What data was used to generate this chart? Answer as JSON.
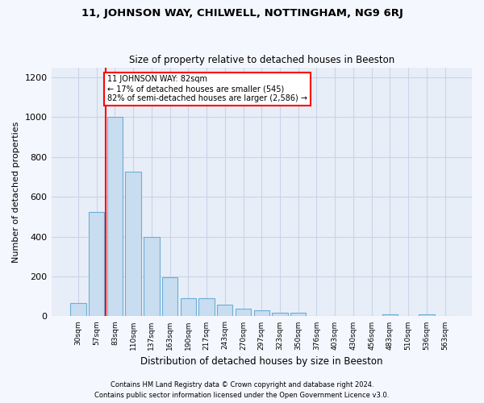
{
  "title1": "11, JOHNSON WAY, CHILWELL, NOTTINGHAM, NG9 6RJ",
  "title2": "Size of property relative to detached houses in Beeston",
  "xlabel": "Distribution of detached houses by size in Beeston",
  "ylabel": "Number of detached properties",
  "footer1": "Contains HM Land Registry data © Crown copyright and database right 2024.",
  "footer2": "Contains public sector information licensed under the Open Government Licence v3.0.",
  "annotation_line1": "11 JOHNSON WAY: 82sqm",
  "annotation_line2": "← 17% of detached houses are smaller (545)",
  "annotation_line3": "82% of semi-detached houses are larger (2,586) →",
  "bar_color": "#c9ddf0",
  "bar_edge_color": "#6baed6",
  "categories": [
    "30sqm",
    "57sqm",
    "83sqm",
    "110sqm",
    "137sqm",
    "163sqm",
    "190sqm",
    "217sqm",
    "243sqm",
    "270sqm",
    "297sqm",
    "323sqm",
    "350sqm",
    "376sqm",
    "403sqm",
    "430sqm",
    "456sqm",
    "483sqm",
    "510sqm",
    "536sqm",
    "563sqm"
  ],
  "values": [
    68,
    525,
    1000,
    725,
    400,
    197,
    90,
    90,
    60,
    40,
    32,
    17,
    17,
    0,
    0,
    0,
    0,
    10,
    0,
    10,
    0
  ],
  "ylim": [
    0,
    1250
  ],
  "yticks": [
    0,
    200,
    400,
    600,
    800,
    1000,
    1200
  ],
  "grid_color": "#c8d4e8",
  "fig_bg_color": "#f5f7ff",
  "plot_bg_color": "#e8eef8"
}
